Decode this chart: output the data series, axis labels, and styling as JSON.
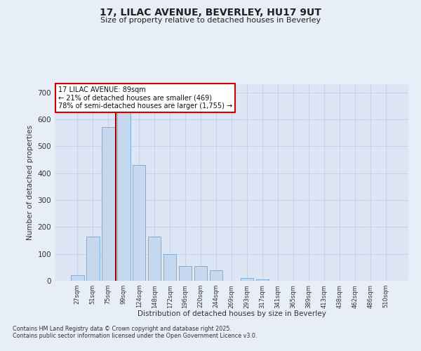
{
  "title_line1": "17, LILAC AVENUE, BEVERLEY, HU17 9UT",
  "title_line2": "Size of property relative to detached houses in Beverley",
  "xlabel": "Distribution of detached houses by size in Beverley",
  "ylabel": "Number of detached properties",
  "categories": [
    "27sqm",
    "51sqm",
    "75sqm",
    "99sqm",
    "124sqm",
    "148sqm",
    "172sqm",
    "196sqm",
    "220sqm",
    "244sqm",
    "269sqm",
    "293sqm",
    "317sqm",
    "341sqm",
    "365sqm",
    "389sqm",
    "413sqm",
    "438sqm",
    "462sqm",
    "486sqm",
    "510sqm"
  ],
  "values": [
    20,
    165,
    570,
    640,
    430,
    165,
    100,
    55,
    55,
    40,
    0,
    10,
    5,
    0,
    0,
    0,
    0,
    0,
    0,
    0,
    0
  ],
  "bar_color": "#c5d8f0",
  "bar_edge_color": "#7bafd4",
  "red_line_index": 3,
  "annotation_title": "17 LILAC AVENUE: 89sqm",
  "annotation_line2": "← 21% of detached houses are smaller (469)",
  "annotation_line3": "78% of semi-detached houses are larger (1,755) →",
  "annotation_box_color": "#ffffff",
  "annotation_box_edge": "#cc0000",
  "ylim": [
    0,
    730
  ],
  "yticks": [
    0,
    100,
    200,
    300,
    400,
    500,
    600,
    700
  ],
  "background_color": "#e8eef8",
  "plot_bg_color": "#dce6f5",
  "grid_color": "#c8d4e8",
  "footer_line1": "Contains HM Land Registry data © Crown copyright and database right 2025.",
  "footer_line2": "Contains public sector information licensed under the Open Government Licence v3.0."
}
